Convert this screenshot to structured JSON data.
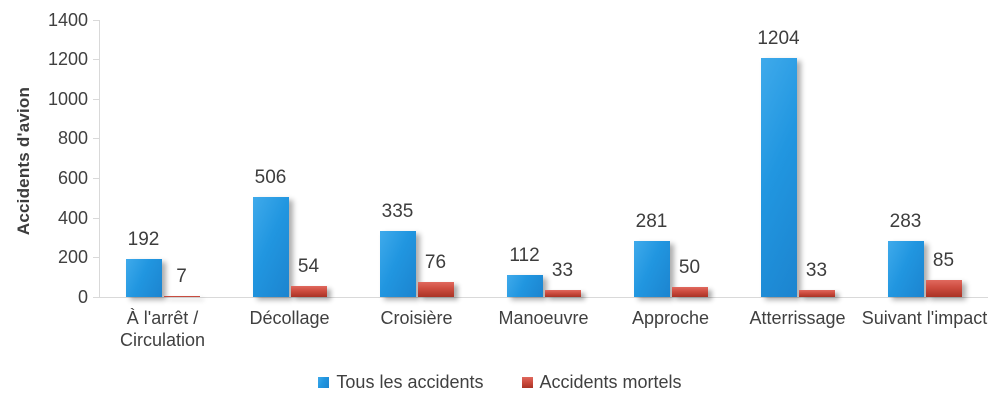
{
  "chart_data": {
    "type": "bar",
    "title": "",
    "xlabel": "",
    "ylabel": "Accidents d'avion",
    "ylim": [
      0,
      1400
    ],
    "y_ticks": [
      0,
      200,
      400,
      600,
      800,
      1000,
      1200,
      1400
    ],
    "grid": false,
    "legend_position": "bottom-center",
    "data_labels": true,
    "categories": [
      "À l'arrêt / Circulation",
      "Décollage",
      "Croisière",
      "Manoeuvre",
      "Approche",
      "Atterrissage",
      "Suivant l'impact"
    ],
    "series": [
      {
        "name": "Tous les accidents",
        "color": "#2196e0",
        "color_light": "#3faaeb",
        "color_dark": "#1c84cf",
        "values": [
          192,
          506,
          335,
          112,
          281,
          1204,
          283
        ]
      },
      {
        "name": "Accidents mortels",
        "color": "#cd4c3f",
        "color_light": "#e0695e",
        "color_dark": "#a93325",
        "values": [
          7,
          54,
          76,
          33,
          50,
          33,
          85
        ]
      }
    ]
  },
  "colors": {
    "axis_line": "#d9d9d9",
    "text": "#404040",
    "background": "#ffffff"
  }
}
